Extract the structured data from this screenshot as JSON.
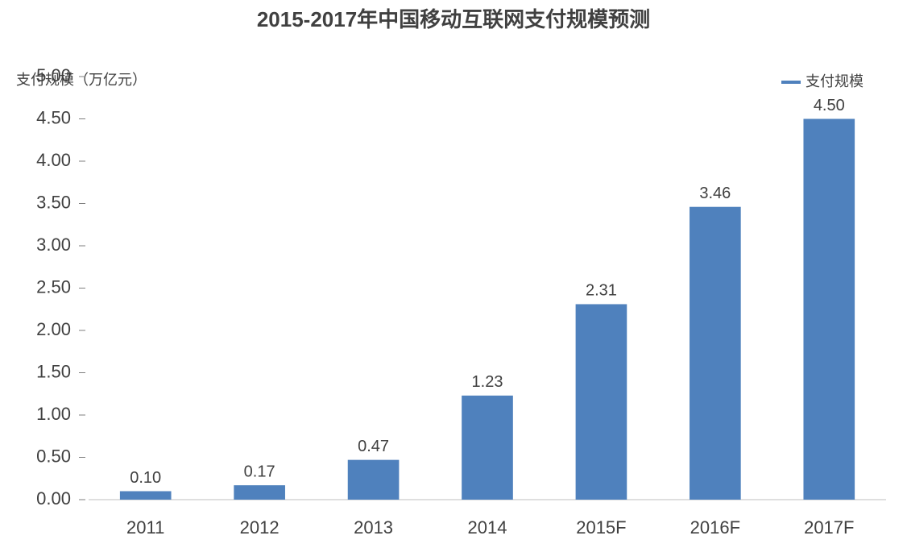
{
  "chart_data": {
    "type": "bar",
    "title": "2015-2017年中国移动互联网支付规模预测",
    "y_label": "支付规模（万亿元）",
    "categories": [
      "2011",
      "2012",
      "2013",
      "2014",
      "2015F",
      "2016F",
      "2017F"
    ],
    "series": [
      {
        "name": "支付规模",
        "color": "#4f81bd",
        "values": [
          0.1,
          0.17,
          0.47,
          1.23,
          2.31,
          3.46,
          4.5
        ],
        "value_labels": [
          "0.10",
          "0.17",
          "0.47",
          "1.23",
          "2.31",
          "3.46",
          "4.50"
        ]
      }
    ],
    "ylim": [
      0,
      5
    ],
    "yticks": [
      {
        "value": 0,
        "label": "0.00"
      },
      {
        "value": 0.5,
        "label": "0.50"
      },
      {
        "value": 1,
        "label": "1.00"
      },
      {
        "value": 1.5,
        "label": "1.50"
      },
      {
        "value": 2,
        "label": "2.00"
      },
      {
        "value": 2.5,
        "label": "2.50"
      },
      {
        "value": 3,
        "label": "3.00"
      },
      {
        "value": 3.5,
        "label": "3.50"
      },
      {
        "value": 4,
        "label": "4.00"
      },
      {
        "value": 4.5,
        "label": "4.50"
      },
      {
        "value": 5,
        "label": "5.00"
      }
    ],
    "grid": false,
    "legend": "top-right"
  }
}
